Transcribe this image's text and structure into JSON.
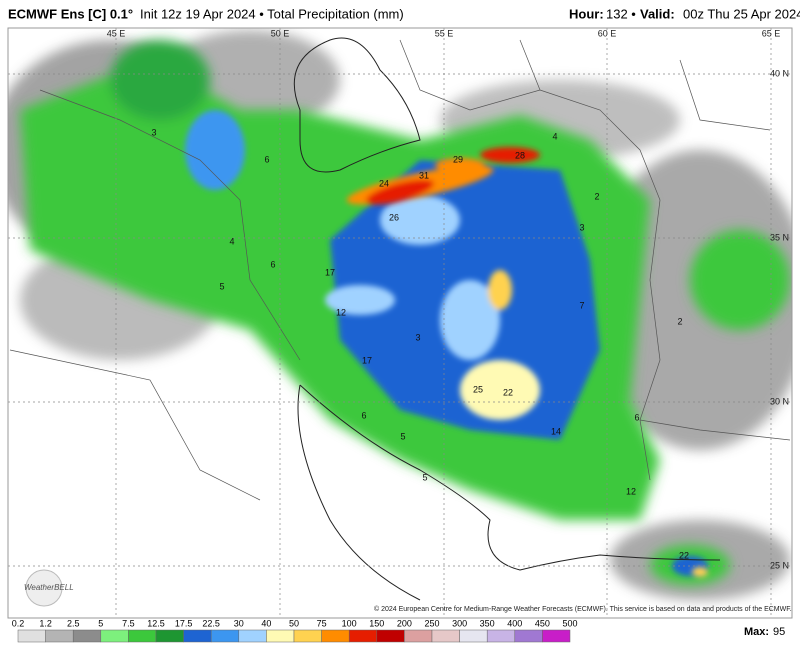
{
  "header": {
    "model": "ECMWF Ens [C] 0.1°",
    "info": "Init 12z 19 Apr 2024 • Total Precipitation (mm)",
    "hour_label": "Hour:",
    "hour": "132 •",
    "valid_label": "Valid:",
    "valid": "00z Thu 25 Apr 2024"
  },
  "map": {
    "lon_labels": [
      "45 E",
      "50 E",
      "55 E",
      "60 E",
      "65 E"
    ],
    "lat_labels": [
      "40 N",
      "35 N",
      "30 N",
      "25 N"
    ],
    "value_labels": [
      29,
      28,
      31,
      24,
      26,
      17,
      12,
      3,
      17,
      25,
      22,
      14,
      6,
      5,
      5,
      12,
      22,
      4,
      4,
      6,
      5,
      2,
      3,
      7,
      2,
      6,
      3,
      6
    ],
    "credit": "© 2024 European Centre for Medium-Range Weather Forecasts (ECMWF). This service is based on data and products of the ECMWF.",
    "logo": "WeatherBELL"
  },
  "colorbar": {
    "levels": [
      0.2,
      1.2,
      2.5,
      5,
      7.5,
      12.5,
      17.5,
      22.5,
      30,
      40,
      50,
      75,
      100,
      150,
      200,
      250,
      300,
      350,
      400,
      450,
      500
    ],
    "colors": [
      "#e0e0e0",
      "#b4b4b4",
      "#8c8c8c",
      "#7df07d",
      "#3cc83c",
      "#1e9632",
      "#1e64d2",
      "#3c96f0",
      "#a0d2ff",
      "#fffab4",
      "#ffd250",
      "#ff8c00",
      "#e61e00",
      "#c00000",
      "#dca0a0",
      "#e6c8c8",
      "#e6e6f0",
      "#c8b4e6",
      "#a078d2",
      "#c81ec8"
    ]
  },
  "max": {
    "label": "Max:",
    "value": 95
  }
}
